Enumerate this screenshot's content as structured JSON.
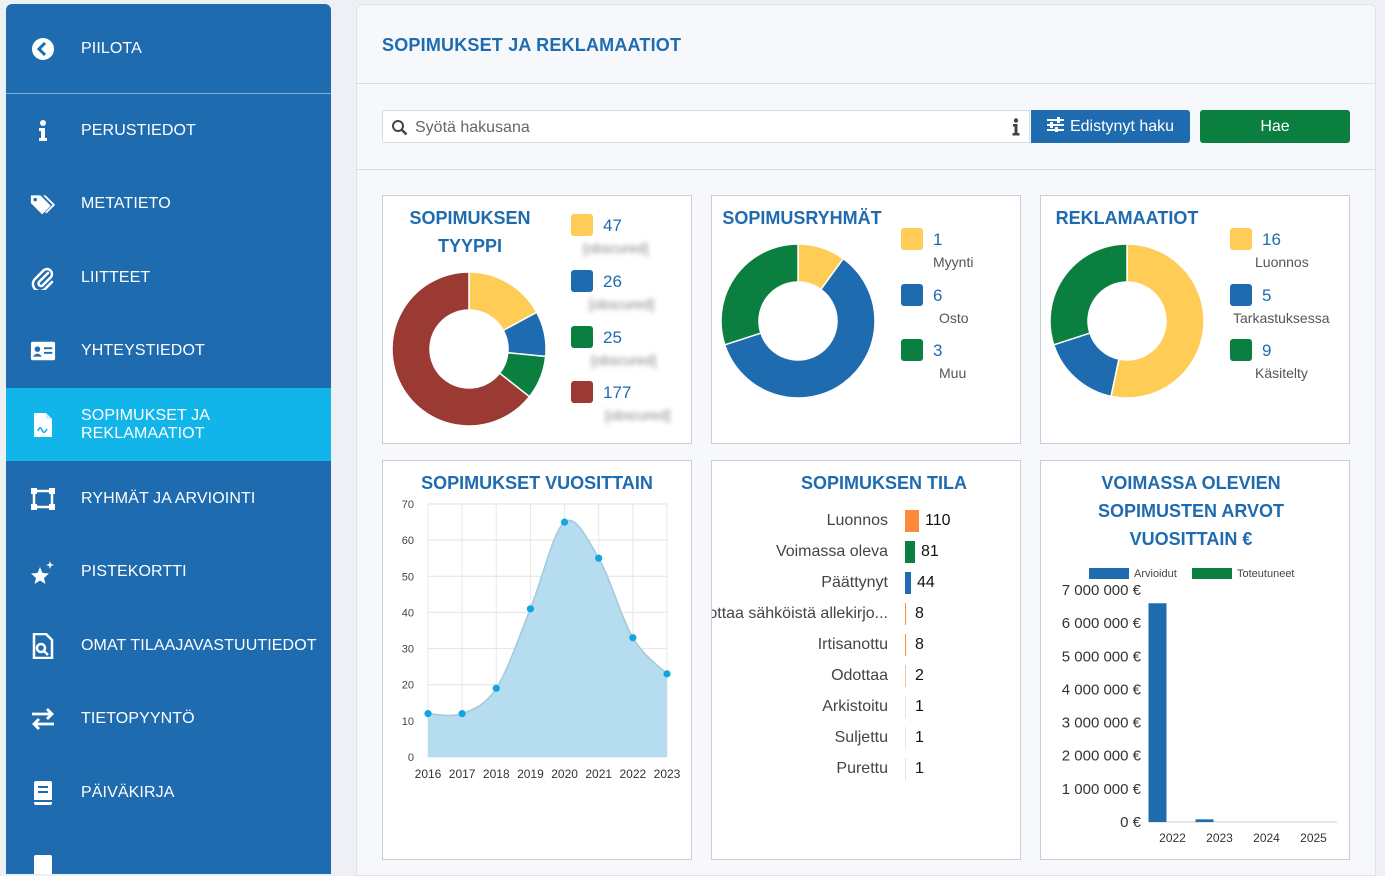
{
  "sidebar": {
    "items": [
      {
        "label": "PIILOTA",
        "icon": "chevron-left-circle-icon"
      },
      {
        "label": "PERUSTIEDOT",
        "icon": "info-icon"
      },
      {
        "label": "METATIETO",
        "icon": "tags-icon"
      },
      {
        "label": "LIITTEET",
        "icon": "paperclip-icon"
      },
      {
        "label": "YHTEYSTIEDOT",
        "icon": "contact-card-icon"
      },
      {
        "label": "SOPIMUKSET JA REKLAMAATIOT",
        "icon": "contract-icon",
        "active": true
      },
      {
        "label": "RYHMÄT JA ARVIOINTI",
        "icon": "group-frame-icon"
      },
      {
        "label": "PISTEKORTTI",
        "icon": "stars-icon"
      },
      {
        "label": "OMAT TILAAJAVASTUUTIEDOT",
        "icon": "document-search-icon"
      },
      {
        "label": "TIETOPYYNTÖ",
        "icon": "exchange-arrows-icon"
      },
      {
        "label": "PÄIVÄKIRJA",
        "icon": "book-icon"
      }
    ]
  },
  "header": {
    "title": "SOPIMUKSET JA REKLAMAATIOT"
  },
  "search": {
    "placeholder": "Syötä hakusana",
    "advanced_label": "Edistynyt haku",
    "submit_label": "Hae"
  },
  "colors": {
    "yellow": "#ffcc55",
    "blue": "#1e6bb0",
    "green": "#0a7f3f",
    "red": "#9b3a32",
    "orange": "#fa8c3c",
    "area": "#b5ddef",
    "point": "#12a6e0"
  },
  "chart_data": [
    {
      "type": "pie",
      "title": "SOPIMUKSEN TYYPPI",
      "categories": [
        "[obscured]",
        "[obscured]",
        "[obscured]",
        "[obscured]"
      ],
      "values": [
        47,
        26,
        25,
        177
      ],
      "colors": [
        "#ffcc55",
        "#1e6bb0",
        "#0a7f3f",
        "#9b3a32"
      ],
      "legend": "right"
    },
    {
      "type": "pie",
      "title": "SOPIMUSRYHMÄT",
      "categories": [
        "Myynti",
        "Osto",
        "Muu"
      ],
      "values": [
        1,
        6,
        3
      ],
      "colors": [
        "#ffcc55",
        "#1e6bb0",
        "#0a7f3f"
      ],
      "legend": "right"
    },
    {
      "type": "pie",
      "title": "REKLAMAATIOT",
      "categories": [
        "Luonnos",
        "Tarkastuksessa",
        "Käsitelty"
      ],
      "values": [
        16,
        5,
        9
      ],
      "colors": [
        "#ffcc55",
        "#1e6bb0",
        "#0a7f3f"
      ],
      "legend": "right"
    },
    {
      "type": "area",
      "title": "SOPIMUKSET VUOSITTAIN",
      "x": [
        "2016",
        "2017",
        "2018",
        "2019",
        "2020",
        "2021",
        "2022",
        "2023"
      ],
      "values": [
        12,
        12,
        19,
        41,
        65,
        55,
        33,
        23
      ],
      "ylim": [
        0,
        70
      ],
      "yticks": [
        "0",
        "10",
        "20",
        "30",
        "40",
        "50",
        "60",
        "70"
      ],
      "grid": true
    },
    {
      "type": "bar",
      "orientation": "horizontal",
      "title": "SOPIMUKSEN TILA",
      "categories": [
        "Luonnos",
        "Voimassa oleva",
        "Päättynyt",
        "Odottaa sähköistä allekirjo...",
        "Irtisanottu",
        "Odottaa",
        "Arkistoitu",
        "Suljettu",
        "Purettu"
      ],
      "values": [
        110,
        81,
        44,
        8,
        8,
        2,
        1,
        1,
        1
      ],
      "colors": [
        "#fa8c3c",
        "#0a7f3f",
        "#1e6bb0",
        "#fa8c3c",
        "#fa8c3c",
        "#f0c8a8",
        "#e3e3e3",
        "#e3e3e3",
        "#e3e3e3"
      ]
    },
    {
      "type": "bar",
      "title": "VOIMASSA OLEVIEN SOPIMUSTEN ARVOT VUOSITTAIN €",
      "categories": [
        "2022",
        "2023",
        "2024",
        "2025"
      ],
      "series": [
        {
          "name": "Arvioidut",
          "values": [
            6600000,
            80000,
            0,
            0
          ],
          "color": "#1e6bb0"
        },
        {
          "name": "Toteutuneet",
          "values": [
            0,
            0,
            0,
            0
          ],
          "color": "#0a7f3f"
        }
      ],
      "ylim": [
        0,
        7000000
      ],
      "yticks": [
        "0 €",
        "1 000 000 €",
        "2 000 000 €",
        "3 000 000 €",
        "4 000 000 €",
        "5 000 000 €",
        "6 000 000 €",
        "7 000 000 €"
      ],
      "legend": "top"
    }
  ]
}
